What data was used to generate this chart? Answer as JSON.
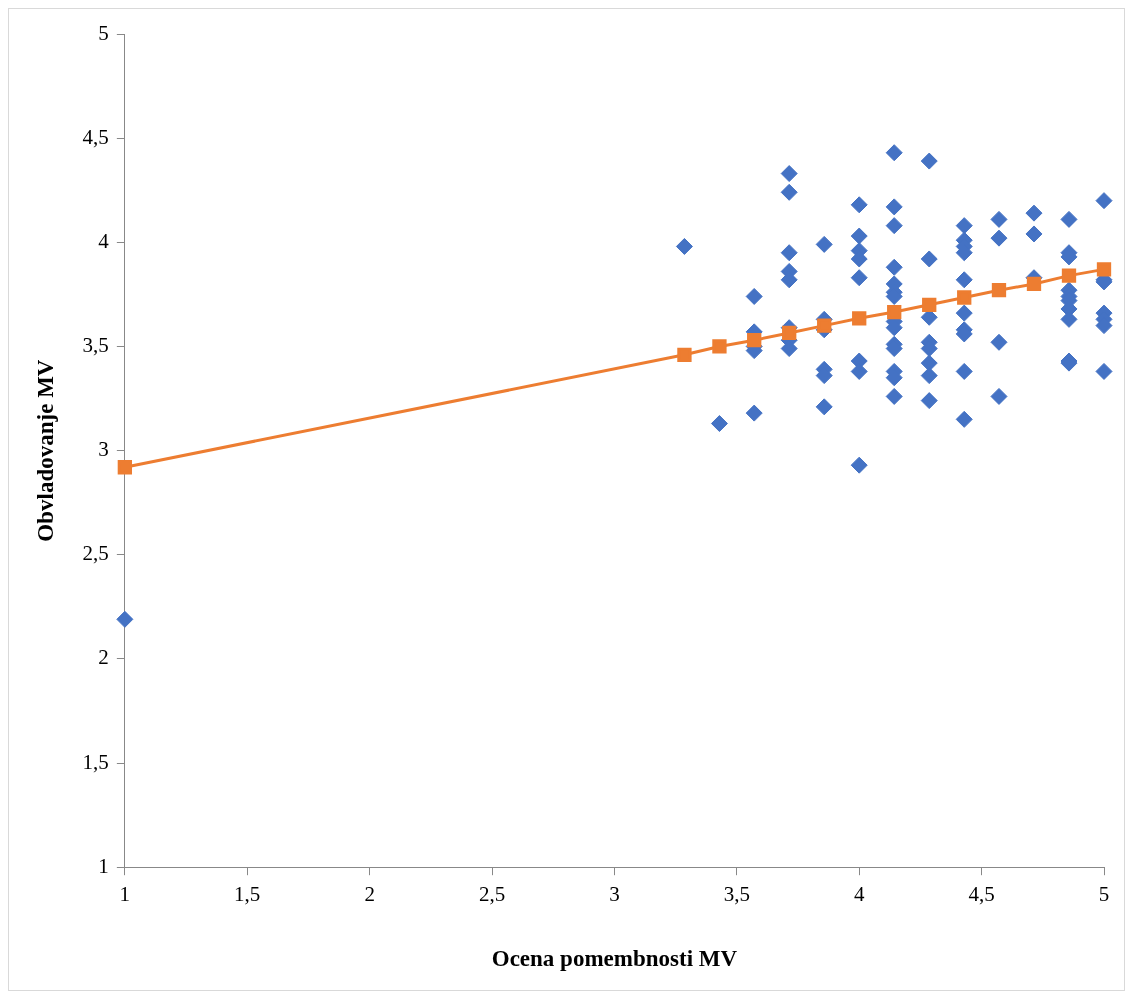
{
  "chart_data": {
    "type": "scatter",
    "xlabel": "Ocena pomembnosti MV",
    "ylabel": "Obvladovanje MV",
    "xlim": [
      1,
      5
    ],
    "ylim": [
      1,
      5
    ],
    "xticks": [
      1,
      {
        "value": 1.5,
        "label": "1,5"
      },
      2,
      {
        "value": 2.5,
        "label": "2,5"
      },
      3,
      {
        "value": 3.5,
        "label": "3,5"
      },
      4,
      {
        "value": 4.5,
        "label": "4,5"
      },
      5
    ],
    "yticks": [
      1,
      {
        "value": 1.5,
        "label": "1,5"
      },
      2,
      {
        "value": 2.5,
        "label": "2,5"
      },
      3,
      {
        "value": 3.5,
        "label": "3,5"
      },
      4,
      {
        "value": 4.5,
        "label": "4,5"
      },
      5
    ],
    "grid": false,
    "legend": false,
    "series": [
      {
        "type": "scatter",
        "color": "#4472c4",
        "marker": "diamond",
        "x": [
          1,
          3.286,
          3.429,
          3.571,
          3.571,
          3.571,
          3.571,
          3.571,
          3.714,
          3.714,
          3.714,
          3.714,
          3.714,
          3.714,
          3.714,
          3.714,
          3.857,
          3.857,
          3.857,
          3.857,
          3.857,
          3.857,
          4,
          4,
          4,
          4,
          4,
          4,
          4,
          4,
          4.143,
          4.143,
          4.143,
          4.143,
          4.143,
          4.143,
          4.143,
          4.143,
          4.143,
          4.143,
          4.143,
          4.143,
          4.143,
          4.143,
          4.286,
          4.286,
          4.286,
          4.286,
          4.286,
          4.286,
          4.286,
          4.286,
          4.429,
          4.429,
          4.429,
          4.429,
          4.429,
          4.429,
          4.429,
          4.429,
          4.429,
          4.429,
          4.571,
          4.571,
          4.571,
          4.571,
          4.714,
          4.714,
          4.714,
          4.857,
          4.857,
          4.857,
          4.857,
          4.857,
          4.857,
          4.857,
          4.857,
          4.857,
          4.857,
          5,
          5,
          5,
          5,
          5,
          5,
          5
        ],
        "values": [
          2.19,
          3.98,
          3.13,
          3.74,
          3.57,
          3.5,
          3.48,
          3.18,
          4.33,
          4.24,
          3.95,
          3.86,
          3.82,
          3.59,
          3.53,
          3.49,
          3.99,
          3.63,
          3.58,
          3.39,
          3.36,
          3.21,
          4.18,
          4.03,
          3.96,
          3.92,
          3.83,
          3.43,
          3.38,
          2.93,
          4.43,
          4.17,
          4.08,
          3.88,
          3.8,
          3.76,
          3.74,
          3.62,
          3.59,
          3.51,
          3.49,
          3.38,
          3.35,
          3.26,
          4.39,
          3.92,
          3.64,
          3.52,
          3.49,
          3.42,
          3.36,
          3.24,
          4.08,
          4.01,
          3.98,
          3.95,
          3.82,
          3.66,
          3.58,
          3.56,
          3.38,
          3.15,
          4.11,
          4.02,
          3.52,
          3.26,
          4.14,
          4.04,
          3.83,
          4.11,
          3.95,
          3.93,
          3.77,
          3.74,
          3.72,
          3.68,
          3.63,
          3.43,
          3.42,
          4.2,
          3.82,
          3.81,
          3.66,
          3.63,
          3.6,
          3.38
        ]
      },
      {
        "type": "line",
        "color": "#ed7d31",
        "marker": "square",
        "x": [
          1,
          3.286,
          3.429,
          3.571,
          3.714,
          3.857,
          4,
          4.143,
          4.286,
          4.429,
          4.571,
          4.714,
          4.857,
          5
        ],
        "values": [
          2.92,
          3.46,
          3.5,
          3.53,
          3.565,
          3.6,
          3.635,
          3.665,
          3.7,
          3.735,
          3.77,
          3.8,
          3.84,
          3.87
        ]
      }
    ]
  }
}
